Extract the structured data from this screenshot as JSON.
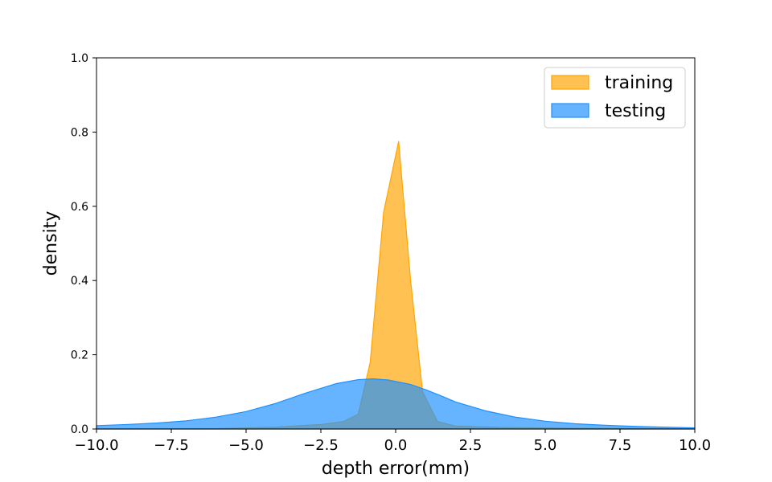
{
  "chart_data": {
    "type": "area",
    "xlabel": "depth error(mm)",
    "ylabel": "density",
    "xlim": [
      -10,
      10
    ],
    "ylim": [
      0,
      1
    ],
    "x_ticks": [
      -10,
      -7.5,
      -5,
      -2.5,
      0,
      2.5,
      5,
      7.5,
      10
    ],
    "x_tick_labels": [
      "−10.0",
      "−7.5",
      "−5.0",
      "−2.5",
      "0.0",
      "2.5",
      "5.0",
      "7.5",
      "10.0"
    ],
    "y_ticks": [
      0,
      0.2,
      0.4,
      0.6,
      0.8,
      1.0
    ],
    "y_tick_labels": [
      "0.0",
      "0.2",
      "0.4",
      "0.6",
      "0.8",
      "1.0"
    ],
    "legend_position": "top-right",
    "grid": false,
    "series": [
      {
        "name": "training",
        "color": "#FFA500",
        "points": [
          [
            -10.0,
            0.0
          ],
          [
            -6.0,
            0.001
          ],
          [
            -4.0,
            0.005
          ],
          [
            -3.0,
            0.01
          ],
          [
            -2.5,
            0.012
          ],
          [
            -1.75,
            0.02
          ],
          [
            -1.25,
            0.04
          ],
          [
            -0.85,
            0.18
          ],
          [
            -0.4,
            0.585
          ],
          [
            0.1,
            0.775
          ],
          [
            0.5,
            0.4
          ],
          [
            0.9,
            0.1
          ],
          [
            1.4,
            0.02
          ],
          [
            2.0,
            0.008
          ],
          [
            3.5,
            0.004
          ],
          [
            6.0,
            0.002
          ],
          [
            10.0,
            0.001
          ]
        ]
      },
      {
        "name": "testing",
        "color": "#1E90FF",
        "points": [
          [
            -10.0,
            0.009
          ],
          [
            -9.0,
            0.012
          ],
          [
            -8.0,
            0.016
          ],
          [
            -7.0,
            0.022
          ],
          [
            -6.0,
            0.032
          ],
          [
            -5.0,
            0.047
          ],
          [
            -4.0,
            0.069
          ],
          [
            -3.0,
            0.097
          ],
          [
            -2.0,
            0.122
          ],
          [
            -1.25,
            0.133
          ],
          [
            -0.75,
            0.135
          ],
          [
            -0.25,
            0.132
          ],
          [
            0.5,
            0.12
          ],
          [
            1.0,
            0.106
          ],
          [
            1.5,
            0.09
          ],
          [
            2.0,
            0.073
          ],
          [
            3.0,
            0.049
          ],
          [
            4.0,
            0.032
          ],
          [
            5.0,
            0.021
          ],
          [
            6.0,
            0.014
          ],
          [
            7.0,
            0.01
          ],
          [
            8.0,
            0.007
          ],
          [
            9.0,
            0.005
          ],
          [
            10.0,
            0.003
          ]
        ]
      }
    ]
  }
}
